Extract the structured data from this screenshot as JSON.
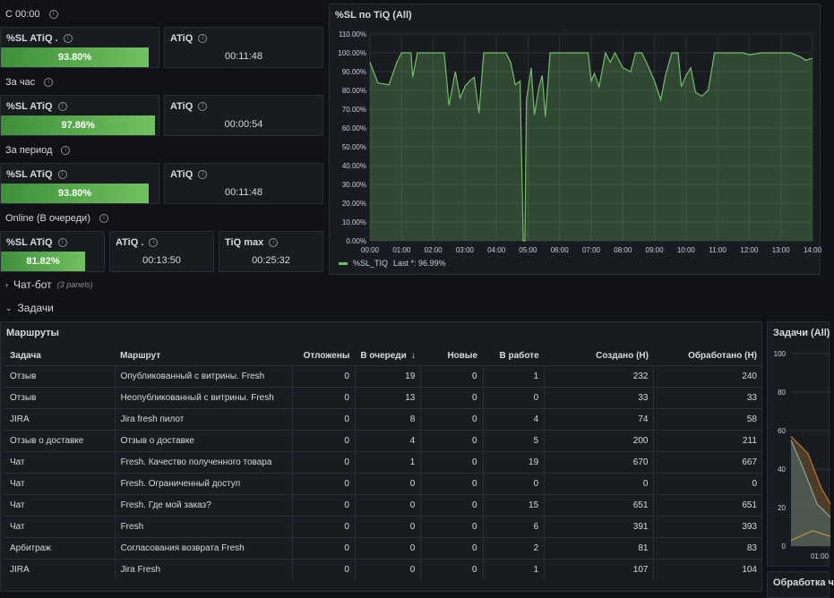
{
  "groups": [
    {
      "title": "С 00:00",
      "sl": {
        "label": "%SL ATiQ .",
        "value": "93.80%",
        "fill": 0.938
      },
      "atiq": {
        "label": "ATiQ",
        "value": "00:11:48"
      }
    },
    {
      "title": "За час",
      "sl": {
        "label": "%SL ATiQ",
        "value": "97.86%",
        "fill": 0.9786
      },
      "atiq": {
        "label": "ATiQ",
        "value": "00:00:54"
      }
    },
    {
      "title": "За период",
      "sl": {
        "label": "%SL ATiQ",
        "value": "93.80%",
        "fill": 0.938
      },
      "atiq": {
        "label": "ATiQ",
        "value": "00:11:48"
      }
    }
  ],
  "online": {
    "title": "Online (В очереди)",
    "sl": {
      "label": "%SL ATiQ",
      "value": "81.82%",
      "fill": 0.8182
    },
    "atiq": {
      "label": "ATiQ .",
      "value": "00:13:50"
    },
    "tiqmax": {
      "label": "TiQ max",
      "value": "00:25:32"
    }
  },
  "chart_panel": {
    "title": "%SL по TiQ (All)",
    "legend_name": "%SL_TIQ",
    "legend_last": "Last *: 96.99%"
  },
  "chart_data": {
    "type": "area",
    "title": "%SL по TiQ (All)",
    "y_ticks": [
      "0.00%",
      "10.00%",
      "20.00%",
      "30.00%",
      "40.00%",
      "50.00%",
      "60.00%",
      "70.00%",
      "80.00%",
      "90.00%",
      "100.00%",
      "110.00%"
    ],
    "x_ticks": [
      "00:00",
      "01:00",
      "02:00",
      "03:00",
      "04:00",
      "05:00",
      "06:00",
      "07:00",
      "08:00",
      "09:00",
      "10:00",
      "11:00",
      "12:00",
      "13:00",
      "14:00"
    ],
    "ylim": [
      0,
      110
    ],
    "series": [
      {
        "name": "%SL_TIQ",
        "color": "#73bf69",
        "points": [
          [
            0,
            95
          ],
          [
            0.25,
            84
          ],
          [
            0.6,
            83
          ],
          [
            0.85,
            95
          ],
          [
            1.0,
            100
          ],
          [
            1.3,
            100
          ],
          [
            1.35,
            87
          ],
          [
            1.5,
            100
          ],
          [
            2.0,
            100
          ],
          [
            2.35,
            100
          ],
          [
            2.5,
            72
          ],
          [
            2.7,
            90
          ],
          [
            2.85,
            76
          ],
          [
            3.0,
            82
          ],
          [
            3.15,
            85
          ],
          [
            3.3,
            87
          ],
          [
            3.45,
            68
          ],
          [
            3.6,
            100
          ],
          [
            3.8,
            100
          ],
          [
            4.1,
            100
          ],
          [
            4.3,
            100
          ],
          [
            4.45,
            95
          ],
          [
            4.6,
            83
          ],
          [
            4.75,
            85
          ],
          [
            4.85,
            0
          ],
          [
            4.9,
            0
          ],
          [
            4.95,
            75
          ],
          [
            5.1,
            92
          ],
          [
            5.2,
            67
          ],
          [
            5.35,
            82
          ],
          [
            5.45,
            88
          ],
          [
            5.55,
            66
          ],
          [
            5.7,
            100
          ],
          [
            6.0,
            100
          ],
          [
            6.3,
            100
          ],
          [
            6.9,
            100
          ],
          [
            7.0,
            85
          ],
          [
            7.1,
            89
          ],
          [
            7.25,
            82
          ],
          [
            7.45,
            100
          ],
          [
            7.6,
            95
          ],
          [
            7.75,
            100
          ],
          [
            8.0,
            92
          ],
          [
            8.25,
            90
          ],
          [
            8.4,
            100
          ],
          [
            8.6,
            100
          ],
          [
            8.8,
            93
          ],
          [
            9.0,
            85
          ],
          [
            9.2,
            75
          ],
          [
            9.35,
            88
          ],
          [
            9.55,
            100
          ],
          [
            9.75,
            100
          ],
          [
            9.85,
            82
          ],
          [
            10.0,
            88
          ],
          [
            10.15,
            92
          ],
          [
            10.3,
            79
          ],
          [
            10.5,
            77
          ],
          [
            10.7,
            80
          ],
          [
            10.9,
            100
          ],
          [
            11.2,
            100
          ],
          [
            11.5,
            100
          ],
          [
            11.8,
            100
          ],
          [
            12.0,
            99
          ],
          [
            12.4,
            100
          ],
          [
            13.0,
            100
          ],
          [
            13.3,
            100
          ],
          [
            13.6,
            98
          ],
          [
            13.8,
            96
          ],
          [
            13.95,
            97
          ],
          [
            14.0,
            97
          ]
        ]
      }
    ]
  },
  "sections": {
    "chatbot": {
      "label": "Чат-бот",
      "sub": "(3 panels)"
    },
    "tasks": {
      "label": "Задачи"
    }
  },
  "routes_table": {
    "title": "Маршруты",
    "columns": [
      "Задача",
      "Маршрут",
      "Отложены",
      "В очереди",
      "Новые",
      "В работе",
      "Создано (Н)",
      "Обработано (Н)"
    ],
    "sort_icon": "↓",
    "rows": [
      [
        "Отзыв",
        "Опубликованный с витрины. Fresh",
        "0",
        "19",
        "0",
        "1",
        "232",
        "240"
      ],
      [
        "Отзыв",
        "Неопубликованный с витрины. Fresh",
        "0",
        "13",
        "0",
        "0",
        "33",
        "33"
      ],
      [
        "JIRA",
        "Jira fresh пилот",
        "0",
        "8",
        "0",
        "4",
        "74",
        "58"
      ],
      [
        "Отзыв о доставке",
        "Отзыв о доставке",
        "0",
        "4",
        "0",
        "5",
        "200",
        "211"
      ],
      [
        "Чат",
        "Fresh. Качество полученного товара",
        "0",
        "1",
        "0",
        "19",
        "670",
        "667"
      ],
      [
        "Чат",
        "Fresh. Ограниченный доступ",
        "0",
        "0",
        "0",
        "0",
        "0",
        "0"
      ],
      [
        "Чат",
        "Fresh. Где мой заказ?",
        "0",
        "0",
        "0",
        "15",
        "651",
        "651"
      ],
      [
        "Чат",
        "Fresh",
        "0",
        "0",
        "0",
        "6",
        "391",
        "393"
      ],
      [
        "Арбитраж",
        "Согласования возврата Fresh",
        "0",
        "0",
        "0",
        "2",
        "81",
        "83"
      ],
      [
        "JIRA",
        "Jira Fresh",
        "0",
        "0",
        "0",
        "1",
        "107",
        "104"
      ]
    ]
  },
  "tasks_panel": {
    "title": "Задачи (All)",
    "y_ticks": [
      "0",
      "20",
      "40",
      "60",
      "80",
      "100"
    ],
    "x_tick": "01:00"
  },
  "processing_panel": {
    "title": "Обработка ч"
  }
}
